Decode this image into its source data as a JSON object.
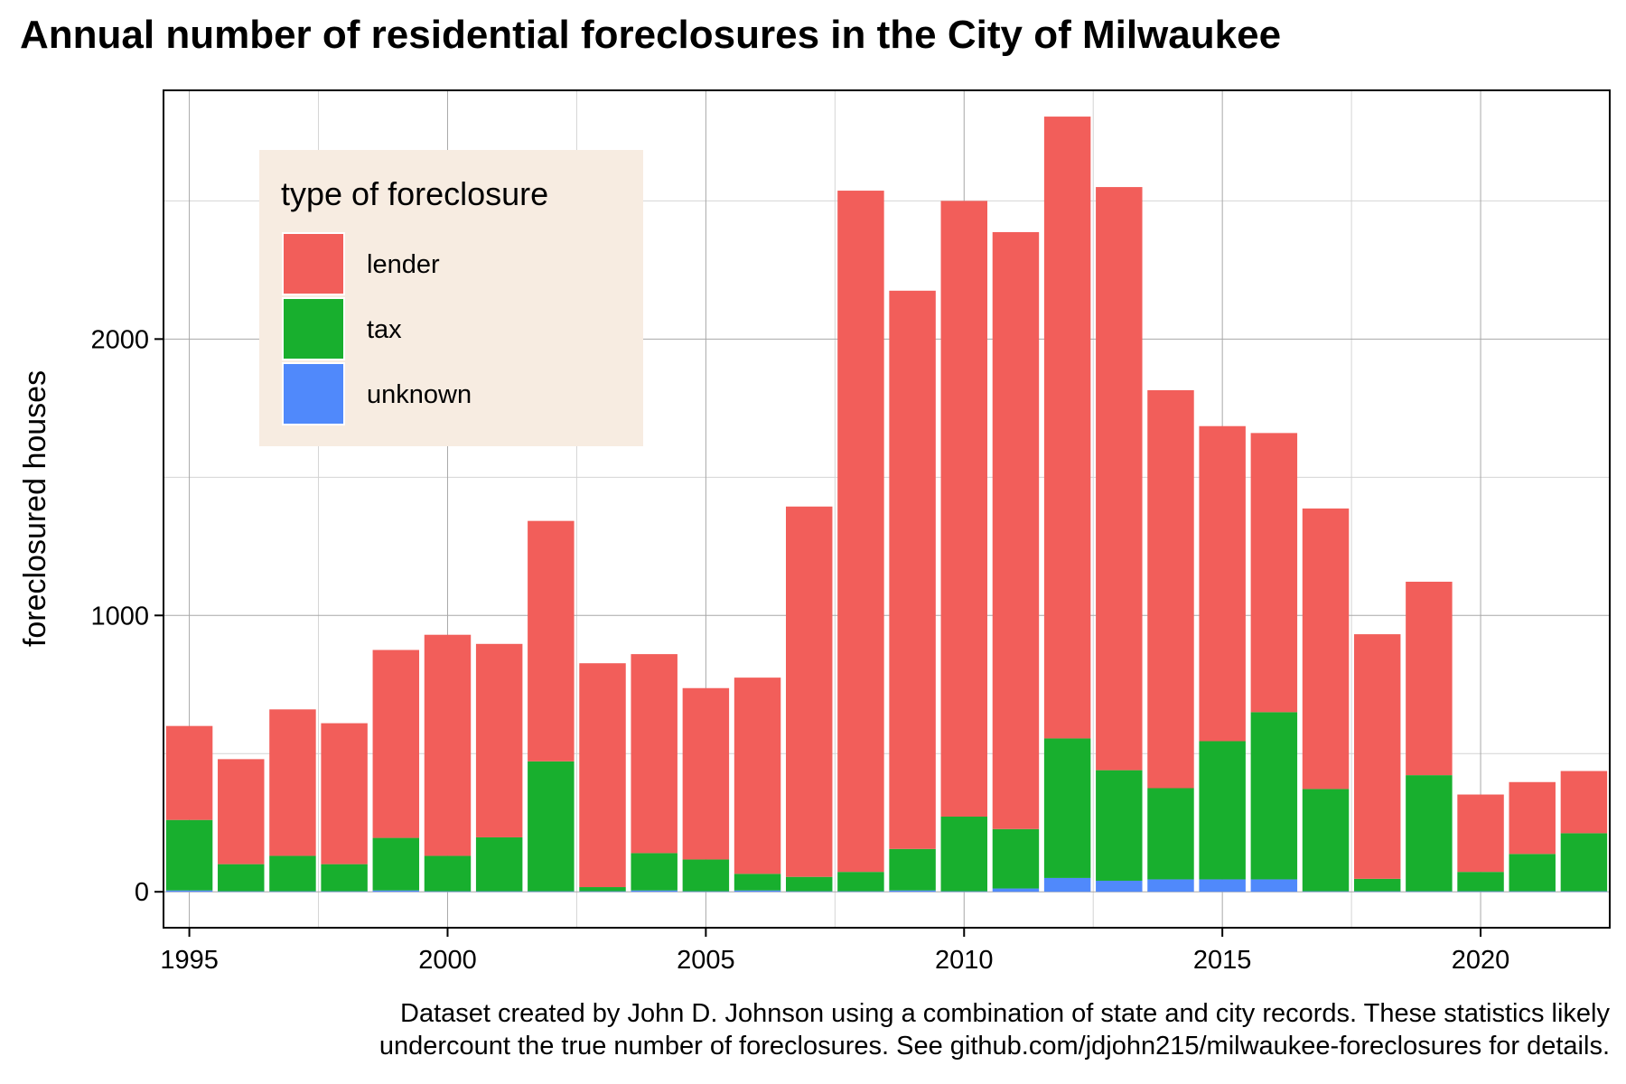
{
  "chart_data": {
    "type": "bar",
    "stacked": true,
    "title": "Annual number of residential foreclosures in the City of Milwaukee",
    "xlabel": "",
    "ylabel": "foreclosured houses",
    "x": [
      1995,
      1996,
      1997,
      1998,
      1999,
      2000,
      2001,
      2002,
      2003,
      2004,
      2005,
      2006,
      2007,
      2008,
      2009,
      2010,
      2011,
      2012,
      2013,
      2014,
      2015,
      2016,
      2017,
      2018,
      2019,
      2020,
      2021,
      2022
    ],
    "xlim": [
      1994.5,
      2022.5
    ],
    "ylim": [
      -130,
      2900
    ],
    "x_ticks": [
      1995,
      2000,
      2005,
      2010,
      2015,
      2020
    ],
    "y_ticks": [
      0,
      1000,
      2000
    ],
    "grid": true,
    "legend": {
      "title": "type of foreclosure",
      "position": "top-left inside",
      "background": "#f7ece1"
    },
    "series": [
      {
        "name": "unknown",
        "color": "#5089fb",
        "values": [
          5,
          2,
          2,
          2,
          5,
          2,
          2,
          2,
          2,
          5,
          2,
          5,
          2,
          2,
          5,
          2,
          12,
          50,
          40,
          45,
          45,
          45,
          2,
          2,
          2,
          2,
          2,
          2
        ]
      },
      {
        "name": "tax",
        "color": "#18af2e",
        "values": [
          255,
          98,
          128,
          98,
          190,
          128,
          195,
          470,
          15,
          135,
          115,
          60,
          52,
          70,
          150,
          270,
          215,
          505,
          400,
          330,
          500,
          605,
          370,
          45,
          420,
          70,
          135,
          210
        ]
      },
      {
        "name": "lender",
        "color": "#f25e5a",
        "values": [
          340,
          380,
          530,
          510,
          680,
          800,
          700,
          870,
          810,
          720,
          620,
          710,
          1340,
          2465,
          2020,
          2228,
          2160,
          2250,
          2110,
          1440,
          1140,
          1010,
          1015,
          885,
          700,
          280,
          260,
          225
        ]
      }
    ],
    "caption": [
      "Dataset created by John D. Johnson using a combination of state and city records. These statistics likely",
      "undercount the true number of foreclosures. See github.com/jdjohn215/milwaukee-foreclosures for details."
    ]
  }
}
